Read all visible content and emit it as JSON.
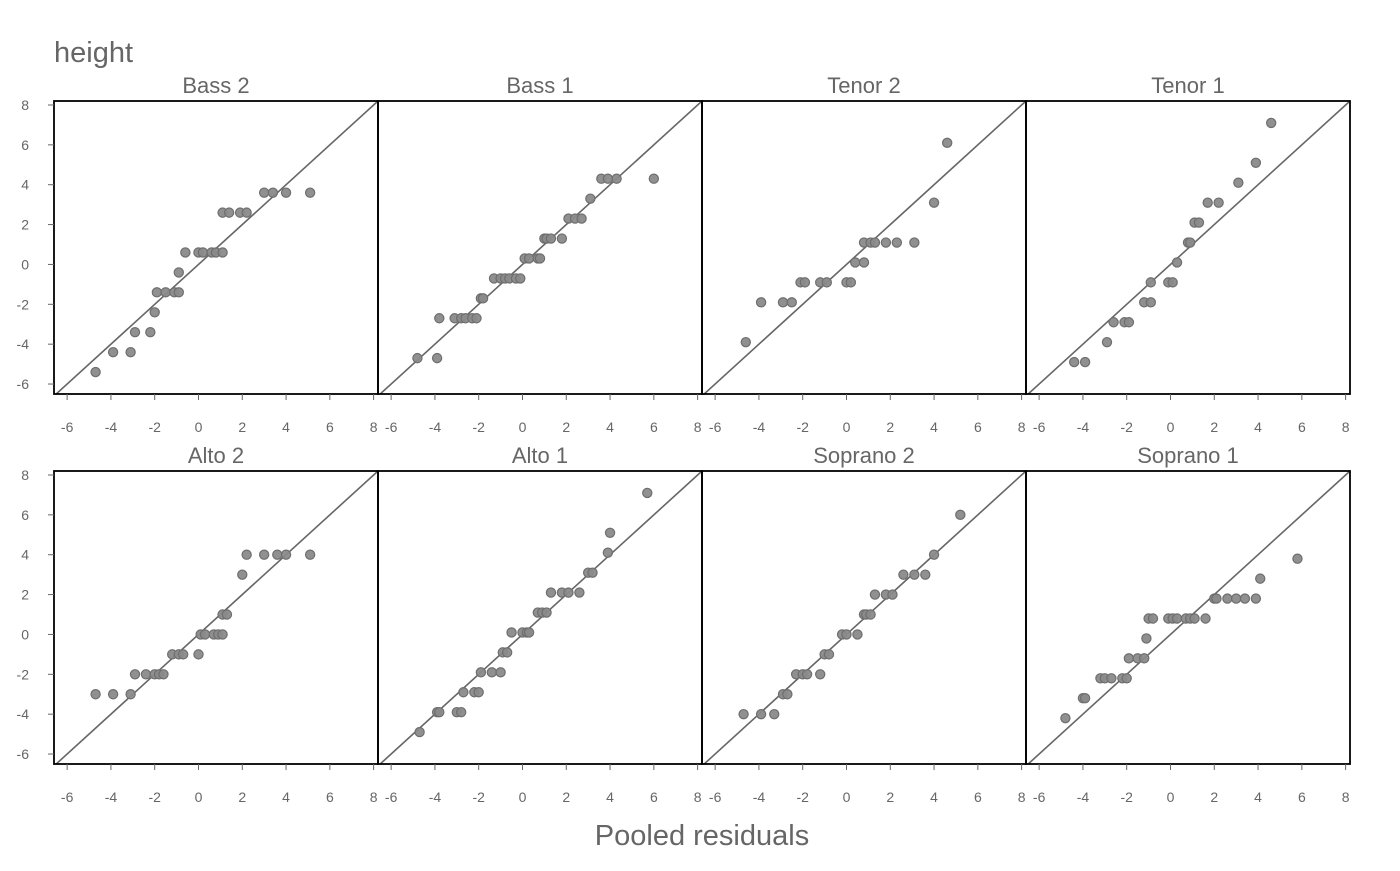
{
  "chart_data": {
    "type": "scatter",
    "title": "height",
    "xlabel": "Pooled residuals",
    "ylabel": "",
    "xlim": [
      -6.6,
      8.2
    ],
    "ylim": [
      -6.5,
      8.2
    ],
    "xticks": [
      "-6",
      "-4",
      "-2",
      "0",
      "2",
      "4",
      "6",
      "8"
    ],
    "yticks": [
      "8",
      "6",
      "4",
      "2",
      "0",
      "-2",
      "-4",
      "-6"
    ],
    "reference_line": "y = x",
    "grid": false,
    "colors": {
      "point": "#8a8a8a",
      "point_stroke": "#6e6e6e",
      "line": "#666666",
      "frame": "#000000",
      "text": "#666666"
    },
    "panels": [
      {
        "name": "Bass 2",
        "points": [
          [
            -4.7,
            -5.4
          ],
          [
            -3.9,
            -4.4
          ],
          [
            -3.1,
            -4.4
          ],
          [
            -2.9,
            -3.4
          ],
          [
            -2.2,
            -3.4
          ],
          [
            -2.0,
            -2.4
          ],
          [
            -1.9,
            -1.4
          ],
          [
            -1.5,
            -1.4
          ],
          [
            -1.1,
            -1.4
          ],
          [
            -0.9,
            -1.4
          ],
          [
            -0.9,
            -0.4
          ],
          [
            -0.6,
            0.6
          ],
          [
            0.0,
            0.6
          ],
          [
            0.2,
            0.6
          ],
          [
            0.6,
            0.6
          ],
          [
            0.8,
            0.6
          ],
          [
            1.1,
            0.6
          ],
          [
            1.1,
            2.6
          ],
          [
            1.4,
            2.6
          ],
          [
            1.9,
            2.6
          ],
          [
            2.2,
            2.6
          ],
          [
            3.0,
            3.6
          ],
          [
            3.4,
            3.6
          ],
          [
            4.0,
            3.6
          ],
          [
            5.1,
            3.6
          ]
        ]
      },
      {
        "name": "Bass 1",
        "points": [
          [
            -4.8,
            -4.7
          ],
          [
            -3.9,
            -4.7
          ],
          [
            -3.8,
            -2.7
          ],
          [
            -3.1,
            -2.7
          ],
          [
            -2.8,
            -2.7
          ],
          [
            -2.6,
            -2.7
          ],
          [
            -2.3,
            -2.7
          ],
          [
            -2.1,
            -2.7
          ],
          [
            -1.9,
            -1.7
          ],
          [
            -1.8,
            -1.7
          ],
          [
            -1.3,
            -0.7
          ],
          [
            -1.0,
            -0.7
          ],
          [
            -0.8,
            -0.7
          ],
          [
            -0.6,
            -0.7
          ],
          [
            -0.3,
            -0.7
          ],
          [
            -0.1,
            -0.7
          ],
          [
            0.1,
            0.3
          ],
          [
            0.3,
            0.3
          ],
          [
            0.7,
            0.3
          ],
          [
            0.8,
            0.3
          ],
          [
            1.0,
            1.3
          ],
          [
            1.1,
            1.3
          ],
          [
            1.3,
            1.3
          ],
          [
            1.8,
            1.3
          ],
          [
            2.1,
            2.3
          ],
          [
            2.4,
            2.3
          ],
          [
            2.7,
            2.3
          ],
          [
            3.1,
            3.3
          ],
          [
            3.6,
            4.3
          ],
          [
            3.9,
            4.3
          ],
          [
            4.3,
            4.3
          ],
          [
            6.0,
            4.3
          ]
        ]
      },
      {
        "name": "Tenor 2",
        "points": [
          [
            -4.6,
            -3.9
          ],
          [
            -3.9,
            -1.9
          ],
          [
            -2.9,
            -1.9
          ],
          [
            -2.5,
            -1.9
          ],
          [
            -2.1,
            -0.9
          ],
          [
            -1.9,
            -0.9
          ],
          [
            -1.2,
            -0.9
          ],
          [
            -0.9,
            -0.9
          ],
          [
            0.0,
            -0.9
          ],
          [
            0.2,
            -0.9
          ],
          [
            0.4,
            0.1
          ],
          [
            0.8,
            0.1
          ],
          [
            0.8,
            1.1
          ],
          [
            1.1,
            1.1
          ],
          [
            1.3,
            1.1
          ],
          [
            1.8,
            1.1
          ],
          [
            2.3,
            1.1
          ],
          [
            3.1,
            1.1
          ],
          [
            4.0,
            3.1
          ],
          [
            4.6,
            6.1
          ]
        ]
      },
      {
        "name": "Tenor 1",
        "points": [
          [
            -4.4,
            -4.9
          ],
          [
            -3.9,
            -4.9
          ],
          [
            -2.9,
            -3.9
          ],
          [
            -2.6,
            -2.9
          ],
          [
            -2.1,
            -2.9
          ],
          [
            -1.9,
            -2.9
          ],
          [
            -1.2,
            -1.9
          ],
          [
            -0.9,
            -1.9
          ],
          [
            -0.9,
            -0.9
          ],
          [
            -0.1,
            -0.9
          ],
          [
            0.1,
            -0.9
          ],
          [
            0.3,
            0.1
          ],
          [
            0.8,
            1.1
          ],
          [
            0.9,
            1.1
          ],
          [
            1.1,
            2.1
          ],
          [
            1.3,
            2.1
          ],
          [
            1.7,
            3.1
          ],
          [
            2.2,
            3.1
          ],
          [
            3.1,
            4.1
          ],
          [
            3.9,
            5.1
          ],
          [
            4.6,
            7.1
          ]
        ]
      },
      {
        "name": "Alto 2",
        "points": [
          [
            -4.7,
            -3.0
          ],
          [
            -3.9,
            -3.0
          ],
          [
            -3.1,
            -3.0
          ],
          [
            -2.9,
            -2.0
          ],
          [
            -2.4,
            -2.0
          ],
          [
            -2.0,
            -2.0
          ],
          [
            -1.8,
            -2.0
          ],
          [
            -1.6,
            -2.0
          ],
          [
            -1.2,
            -1.0
          ],
          [
            -0.9,
            -1.0
          ],
          [
            -0.7,
            -1.0
          ],
          [
            0.0,
            -1.0
          ],
          [
            0.1,
            0.0
          ],
          [
            0.3,
            0.0
          ],
          [
            0.7,
            0.0
          ],
          [
            0.9,
            0.0
          ],
          [
            1.1,
            0.0
          ],
          [
            1.1,
            1.0
          ],
          [
            1.3,
            1.0
          ],
          [
            2.0,
            3.0
          ],
          [
            2.2,
            4.0
          ],
          [
            3.0,
            4.0
          ],
          [
            3.6,
            4.0
          ],
          [
            4.0,
            4.0
          ],
          [
            5.1,
            4.0
          ]
        ]
      },
      {
        "name": "Alto 1",
        "points": [
          [
            -4.7,
            -4.9
          ],
          [
            -3.9,
            -3.9
          ],
          [
            -3.8,
            -3.9
          ],
          [
            -3.0,
            -3.9
          ],
          [
            -2.8,
            -3.9
          ],
          [
            -2.7,
            -2.9
          ],
          [
            -2.2,
            -2.9
          ],
          [
            -2.0,
            -2.9
          ],
          [
            -1.9,
            -1.9
          ],
          [
            -1.4,
            -1.9
          ],
          [
            -1.0,
            -1.9
          ],
          [
            -0.9,
            -0.9
          ],
          [
            -0.7,
            -0.9
          ],
          [
            -0.5,
            0.1
          ],
          [
            0.0,
            0.1
          ],
          [
            0.2,
            0.1
          ],
          [
            0.3,
            0.1
          ],
          [
            0.7,
            1.1
          ],
          [
            0.9,
            1.1
          ],
          [
            1.1,
            1.1
          ],
          [
            1.3,
            2.1
          ],
          [
            1.8,
            2.1
          ],
          [
            2.1,
            2.1
          ],
          [
            2.6,
            2.1
          ],
          [
            3.0,
            3.1
          ],
          [
            3.2,
            3.1
          ],
          [
            3.9,
            4.1
          ],
          [
            4.0,
            5.1
          ],
          [
            5.7,
            7.1
          ]
        ]
      },
      {
        "name": "Soprano 2",
        "points": [
          [
            -4.7,
            -4.0
          ],
          [
            -3.9,
            -4.0
          ],
          [
            -3.3,
            -4.0
          ],
          [
            -2.9,
            -3.0
          ],
          [
            -2.7,
            -3.0
          ],
          [
            -2.3,
            -2.0
          ],
          [
            -2.0,
            -2.0
          ],
          [
            -1.8,
            -2.0
          ],
          [
            -1.2,
            -2.0
          ],
          [
            -1.0,
            -1.0
          ],
          [
            -0.8,
            -1.0
          ],
          [
            -0.2,
            0.0
          ],
          [
            0.0,
            0.0
          ],
          [
            0.5,
            0.0
          ],
          [
            0.8,
            1.0
          ],
          [
            0.9,
            1.0
          ],
          [
            1.1,
            1.0
          ],
          [
            1.3,
            2.0
          ],
          [
            1.8,
            2.0
          ],
          [
            2.1,
            2.0
          ],
          [
            2.6,
            3.0
          ],
          [
            3.1,
            3.0
          ],
          [
            3.6,
            3.0
          ],
          [
            4.0,
            4.0
          ],
          [
            5.2,
            6.0
          ]
        ]
      },
      {
        "name": "Soprano 1",
        "points": [
          [
            -4.8,
            -4.2
          ],
          [
            -4.0,
            -3.2
          ],
          [
            -3.9,
            -3.2
          ],
          [
            -3.2,
            -2.2
          ],
          [
            -3.0,
            -2.2
          ],
          [
            -2.7,
            -2.2
          ],
          [
            -2.2,
            -2.2
          ],
          [
            -2.0,
            -2.2
          ],
          [
            -1.9,
            -1.2
          ],
          [
            -1.5,
            -1.2
          ],
          [
            -1.2,
            -1.2
          ],
          [
            -1.1,
            -0.2
          ],
          [
            -1.0,
            0.8
          ],
          [
            -0.8,
            0.8
          ],
          [
            -0.1,
            0.8
          ],
          [
            0.1,
            0.8
          ],
          [
            0.3,
            0.8
          ],
          [
            0.7,
            0.8
          ],
          [
            0.9,
            0.8
          ],
          [
            1.1,
            0.8
          ],
          [
            1.6,
            0.8
          ],
          [
            2.0,
            1.8
          ],
          [
            2.1,
            1.8
          ],
          [
            2.6,
            1.8
          ],
          [
            3.0,
            1.8
          ],
          [
            3.4,
            1.8
          ],
          [
            3.9,
            1.8
          ],
          [
            4.1,
            2.8
          ],
          [
            5.8,
            3.8
          ]
        ]
      }
    ]
  }
}
